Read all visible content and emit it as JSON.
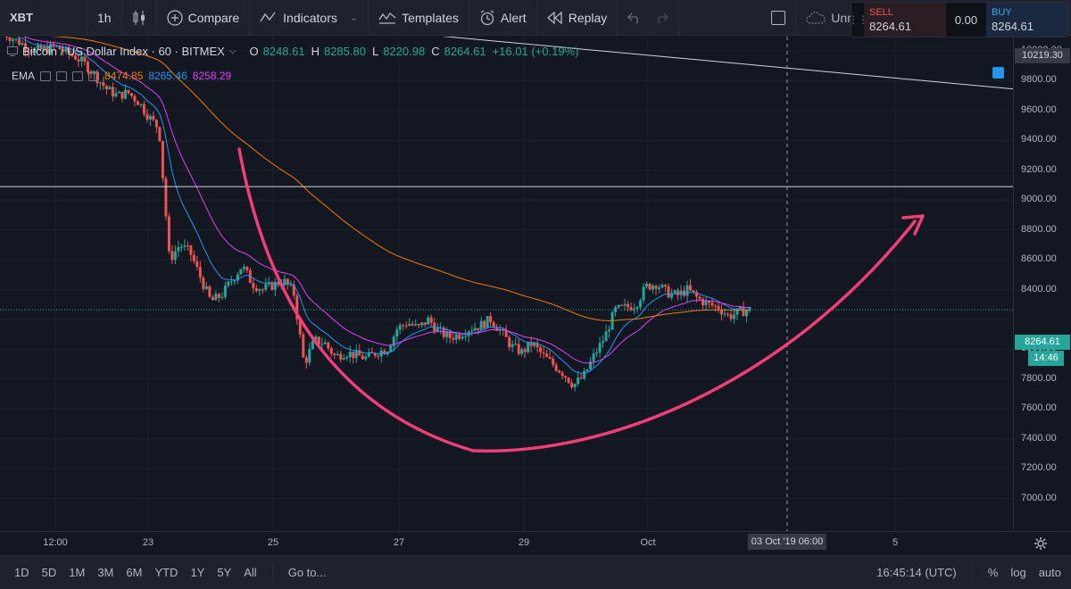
{
  "toolbar": {
    "symbol": "XBT",
    "interval": "1h",
    "compare": "Compare",
    "indicators": "Indicators",
    "templates": "Templates",
    "alert": "Alert",
    "replay": "Replay",
    "layout_name": "Unnamed"
  },
  "trade": {
    "sell_label": "SELL",
    "sell_price": "8264.61",
    "spread": "0.00",
    "buy_label": "BUY",
    "buy_price": "8264.61"
  },
  "legend": {
    "title": "Bitcoin / US Dollar Index · 60 · BITMEX",
    "open_k": "O",
    "open": "8248.61",
    "high_k": "H",
    "high": "8285.80",
    "low_k": "L",
    "low": "8220.98",
    "close_k": "C",
    "close": "8264.61",
    "change": "+16.01 (+0.19%)",
    "ema_label": "EMA",
    "ema_values": [
      "8474.85",
      "8265.46",
      "8258.29"
    ]
  },
  "price_scale": {
    "labels": [
      "10000.00",
      "9800.00",
      "9600.00",
      "9400.00",
      "9200.00",
      "9000.00",
      "8800.00",
      "8600.00",
      "8400.00",
      "8000.00",
      "7800.00",
      "7600.00",
      "7400.00",
      "7200.00",
      "7000.00"
    ],
    "crosshair_price": "10219.30",
    "last_price": "8264.61",
    "countdown": "14:46"
  },
  "time_scale": {
    "labels": [
      "12:00",
      "23",
      "25",
      "27",
      "29",
      "Oct",
      "5"
    ],
    "crosshair_time": "03 Oct '19   06:00"
  },
  "bottom_bar": {
    "ranges": [
      "1D",
      "5D",
      "1M",
      "3M",
      "6M",
      "YTD",
      "1Y",
      "5Y",
      "All"
    ],
    "goto": "Go to...",
    "clock": "16:45:14 (UTC)",
    "percent": "%",
    "log": "log",
    "auto": "auto"
  },
  "colors": {
    "up": "#26a69a",
    "down": "#ef5350",
    "ema_slow": "#f57c00",
    "ema_fast": "#2196f3",
    "ema_mid": "#e040fb",
    "annotation": "#f23d78",
    "background": "#131722"
  },
  "chart_data": {
    "type": "candlestick",
    "title": "Bitcoin / US Dollar Index · 60 · BITMEX",
    "ylim": [
      7000,
      10300
    ],
    "x_ticks": [
      "12:00",
      "23",
      "25",
      "27",
      "29",
      "Oct",
      "5"
    ],
    "y_ticks": [
      7000,
      7200,
      7400,
      7600,
      7800,
      8000,
      8400,
      8600,
      8800,
      9000,
      9200,
      9400,
      9600,
      9800,
      10000
    ],
    "last": {
      "open": 8248.61,
      "high": 8285.8,
      "low": 8220.98,
      "close": 8264.61
    },
    "horizontal_line": 9090,
    "trendline": {
      "from": 10350,
      "to": 9745
    },
    "price_path": [
      10120,
      10080,
      10040,
      10000,
      10010,
      10030,
      9990,
      9960,
      9900,
      9820,
      9740,
      9700,
      9720,
      9660,
      9560,
      9480,
      8600,
      8700,
      8650,
      8480,
      8320,
      8360,
      8460,
      8560,
      8440,
      8400,
      8430,
      8460,
      8380,
      7900,
      8060,
      8040,
      7950,
      7980,
      7960,
      7940,
      7980,
      8000,
      8140,
      8180,
      8140,
      8200,
      8120,
      8080,
      8100,
      8140,
      8160,
      8200,
      8120,
      8020,
      7980,
      8040,
      7960,
      7900,
      7840,
      7760,
      7820,
      7960,
      8080,
      8260,
      8280,
      8300,
      8420,
      8440,
      8380,
      8360,
      8400,
      8340,
      8300,
      8280,
      8220,
      8250,
      8265
    ],
    "ema_values": [
      8474.85,
      8265.46,
      8258.29
    ],
    "annotations": [
      "rounded-bottom-curve",
      "projection-arrow"
    ]
  }
}
